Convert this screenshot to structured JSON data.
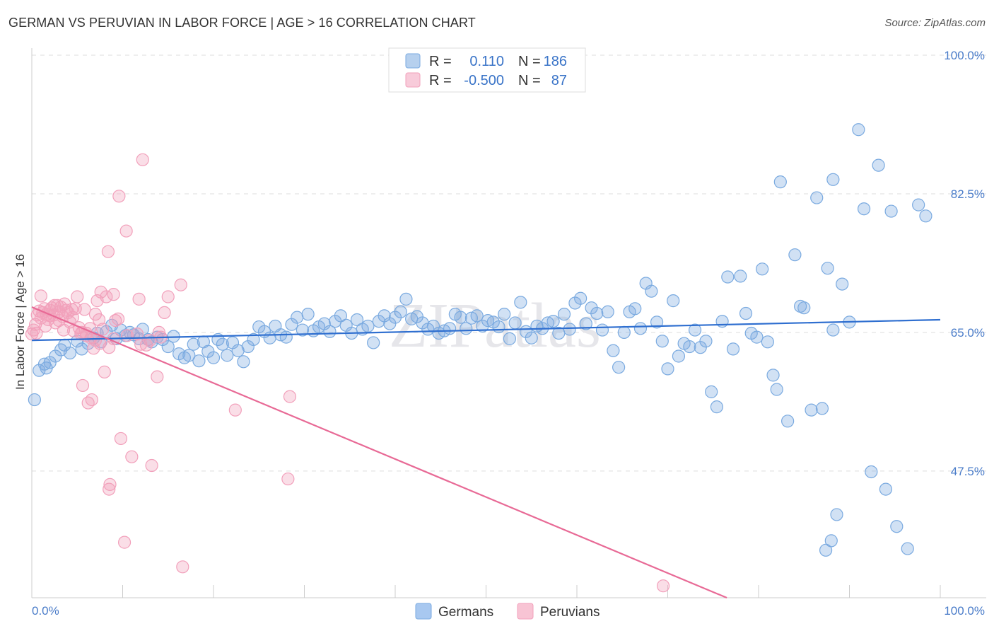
{
  "title": "GERMAN VS PERUVIAN IN LABOR FORCE | AGE > 16 CORRELATION CHART",
  "source": "Source: ZipAtlas.com",
  "watermark": "ZIPatlas",
  "chart_data": {
    "type": "scatter",
    "title": "GERMAN VS PERUVIAN IN LABOR FORCE | AGE > 16 CORRELATION CHART",
    "xlabel": "",
    "ylabel": "In Labor Force | Age > 16",
    "xlim": [
      0,
      100
    ],
    "ylim": [
      31.5,
      100
    ],
    "x_tick_labels": [
      "0.0%",
      "100.0%"
    ],
    "y_ticks": [
      47.5,
      65.0,
      82.5,
      100.0
    ],
    "y_tick_labels": [
      "47.5%",
      "65.0%",
      "82.5%",
      "100.0%"
    ],
    "grid": true,
    "legend_position": "top-center",
    "legend": {
      "rows": [
        {
          "r_label": "R =",
          "r_value": "0.110",
          "n_label": "N =",
          "n_value": "186"
        },
        {
          "r_label": "R =",
          "r_value": "-0.500",
          "n_label": "N =",
          "n_value": "87"
        }
      ]
    },
    "series": [
      {
        "name": "Germans",
        "color": "#7aaae0",
        "line_color": "#2f6fd0",
        "trend": {
          "x": [
            0,
            100
          ],
          "y": [
            64.0,
            66.6
          ]
        },
        "points": [
          [
            0.3,
            56.5
          ],
          [
            0.8,
            60.2
          ],
          [
            1.4,
            61.0
          ],
          [
            1.6,
            60.5
          ],
          [
            2.0,
            61.2
          ],
          [
            2.6,
            62.0
          ],
          [
            3.2,
            62.8
          ],
          [
            3.6,
            63.4
          ],
          [
            4.2,
            62.4
          ],
          [
            5.0,
            63.9
          ],
          [
            5.5,
            62.9
          ],
          [
            6.2,
            63.6
          ],
          [
            6.8,
            64.3
          ],
          [
            7.2,
            64.9
          ],
          [
            7.6,
            63.8
          ],
          [
            8.2,
            65.1
          ],
          [
            8.8,
            65.9
          ],
          [
            9.3,
            64.2
          ],
          [
            9.8,
            65.3
          ],
          [
            10.3,
            64.6
          ],
          [
            10.8,
            65.0
          ],
          [
            11.2,
            64.7
          ],
          [
            11.8,
            64.2
          ],
          [
            12.2,
            65.4
          ],
          [
            12.8,
            64.1
          ],
          [
            13.2,
            63.8
          ],
          [
            13.8,
            64.4
          ],
          [
            14.4,
            64.1
          ],
          [
            15.0,
            63.2
          ],
          [
            15.6,
            64.5
          ],
          [
            16.2,
            62.3
          ],
          [
            16.8,
            61.8
          ],
          [
            17.3,
            62.1
          ],
          [
            17.8,
            63.5
          ],
          [
            18.4,
            61.4
          ],
          [
            18.9,
            63.8
          ],
          [
            19.4,
            62.6
          ],
          [
            20.0,
            61.8
          ],
          [
            20.5,
            64.1
          ],
          [
            21.0,
            63.5
          ],
          [
            21.5,
            62.1
          ],
          [
            22.1,
            63.7
          ],
          [
            22.7,
            62.7
          ],
          [
            23.3,
            61.3
          ],
          [
            23.8,
            63.2
          ],
          [
            24.4,
            64.1
          ],
          [
            25.0,
            65.7
          ],
          [
            25.6,
            65.1
          ],
          [
            26.2,
            64.3
          ],
          [
            26.8,
            65.8
          ],
          [
            27.4,
            64.7
          ],
          [
            28.0,
            64.4
          ],
          [
            28.6,
            66.0
          ],
          [
            29.2,
            66.9
          ],
          [
            29.8,
            65.3
          ],
          [
            30.4,
            67.3
          ],
          [
            31.0,
            65.2
          ],
          [
            31.6,
            65.7
          ],
          [
            32.2,
            66.1
          ],
          [
            32.8,
            65.1
          ],
          [
            33.4,
            66.4
          ],
          [
            34.0,
            67.1
          ],
          [
            34.6,
            65.9
          ],
          [
            35.2,
            64.9
          ],
          [
            35.8,
            66.6
          ],
          [
            36.4,
            65.4
          ],
          [
            37.0,
            65.8
          ],
          [
            37.6,
            63.7
          ],
          [
            38.2,
            66.4
          ],
          [
            38.8,
            67.1
          ],
          [
            39.4,
            66.1
          ],
          [
            40.0,
            66.9
          ],
          [
            40.6,
            67.6
          ],
          [
            41.2,
            69.2
          ],
          [
            41.8,
            66.7
          ],
          [
            42.4,
            67.0
          ],
          [
            43.0,
            66.2
          ],
          [
            43.6,
            65.4
          ],
          [
            44.2,
            65.8
          ],
          [
            44.8,
            64.9
          ],
          [
            45.4,
            65.2
          ],
          [
            46.0,
            65.5
          ],
          [
            46.6,
            67.3
          ],
          [
            47.2,
            66.9
          ],
          [
            47.8,
            65.5
          ],
          [
            48.4,
            66.8
          ],
          [
            49.0,
            67.1
          ],
          [
            49.6,
            65.8
          ],
          [
            50.2,
            66.5
          ],
          [
            50.8,
            66.3
          ],
          [
            51.4,
            65.7
          ],
          [
            52.0,
            67.3
          ],
          [
            52.6,
            64.2
          ],
          [
            53.2,
            66.2
          ],
          [
            53.8,
            68.8
          ],
          [
            54.4,
            65.1
          ],
          [
            55.0,
            64.3
          ],
          [
            55.6,
            65.8
          ],
          [
            56.2,
            65.5
          ],
          [
            56.8,
            66.2
          ],
          [
            57.4,
            66.4
          ],
          [
            58.0,
            64.9
          ],
          [
            58.6,
            67.3
          ],
          [
            59.2,
            65.4
          ],
          [
            59.8,
            68.7
          ],
          [
            60.4,
            69.3
          ],
          [
            61.0,
            66.1
          ],
          [
            61.6,
            68.1
          ],
          [
            62.2,
            67.4
          ],
          [
            62.8,
            65.3
          ],
          [
            63.4,
            67.6
          ],
          [
            64.0,
            62.7
          ],
          [
            64.6,
            60.6
          ],
          [
            65.2,
            65.0
          ],
          [
            65.8,
            67.6
          ],
          [
            66.4,
            68.0
          ],
          [
            67.0,
            65.5
          ],
          [
            67.6,
            71.2
          ],
          [
            68.2,
            70.2
          ],
          [
            68.8,
            66.3
          ],
          [
            69.4,
            63.9
          ],
          [
            70.0,
            60.4
          ],
          [
            70.6,
            69.0
          ],
          [
            71.2,
            62.0
          ],
          [
            71.8,
            63.6
          ],
          [
            72.4,
            63.2
          ],
          [
            73.0,
            65.3
          ],
          [
            73.6,
            63.1
          ],
          [
            74.2,
            63.9
          ],
          [
            74.8,
            57.5
          ],
          [
            75.4,
            55.6
          ],
          [
            76.0,
            66.4
          ],
          [
            76.6,
            72.0
          ],
          [
            77.2,
            62.9
          ],
          [
            78.0,
            72.1
          ],
          [
            78.6,
            67.4
          ],
          [
            79.2,
            64.9
          ],
          [
            79.8,
            64.4
          ],
          [
            80.4,
            73.0
          ],
          [
            81.0,
            63.8
          ],
          [
            81.6,
            59.6
          ],
          [
            82.0,
            57.8
          ],
          [
            82.4,
            84.0
          ],
          [
            83.2,
            53.8
          ],
          [
            84.0,
            74.8
          ],
          [
            84.6,
            68.3
          ],
          [
            85.0,
            68.1
          ],
          [
            85.8,
            55.2
          ],
          [
            86.4,
            82.0
          ],
          [
            87.0,
            55.4
          ],
          [
            87.6,
            73.1
          ],
          [
            88.2,
            65.3
          ],
          [
            88.6,
            42.0
          ],
          [
            88.2,
            84.3
          ],
          [
            89.2,
            71.1
          ],
          [
            90.0,
            66.3
          ],
          [
            91.0,
            90.6
          ],
          [
            91.6,
            80.6
          ],
          [
            92.4,
            47.4
          ],
          [
            93.2,
            86.1
          ],
          [
            94.0,
            45.2
          ],
          [
            94.6,
            80.3
          ],
          [
            95.2,
            40.5
          ],
          [
            96.4,
            37.7
          ],
          [
            97.6,
            81.1
          ],
          [
            98.4,
            79.7
          ],
          [
            88.0,
            38.7
          ],
          [
            87.4,
            37.5
          ]
        ]
      },
      {
        "name": "Peruvians",
        "color": "#f2a0bb",
        "line_color": "#e86a96",
        "trend": {
          "x": [
            0,
            76.5
          ],
          "y": [
            68.2,
            31.5
          ]
        },
        "points": [
          [
            0.2,
            65.3
          ],
          [
            0.4,
            66.0
          ],
          [
            0.6,
            67.2
          ],
          [
            0.8,
            67.7
          ],
          [
            1.0,
            66.8
          ],
          [
            1.2,
            67.5
          ],
          [
            1.4,
            68.0
          ],
          [
            1.6,
            67.3
          ],
          [
            1.8,
            66.6
          ],
          [
            2.0,
            67.8
          ],
          [
            2.2,
            68.1
          ],
          [
            2.4,
            67.2
          ],
          [
            2.6,
            66.2
          ],
          [
            2.8,
            68.4
          ],
          [
            3.0,
            67.6
          ],
          [
            3.2,
            68.2
          ],
          [
            3.4,
            67.0
          ],
          [
            3.6,
            68.6
          ],
          [
            3.8,
            67.8
          ],
          [
            4.0,
            67.5
          ],
          [
            4.2,
            66.3
          ],
          [
            4.4,
            67.9
          ],
          [
            4.6,
            65.2
          ],
          [
            4.8,
            68.0
          ],
          [
            5.0,
            69.5
          ],
          [
            5.2,
            65.6
          ],
          [
            5.4,
            64.8
          ],
          [
            5.6,
            58.3
          ],
          [
            5.8,
            67.9
          ],
          [
            6.0,
            64.6
          ],
          [
            6.2,
            56.1
          ],
          [
            6.4,
            65.5
          ],
          [
            6.6,
            56.5
          ],
          [
            6.8,
            63.0
          ],
          [
            7.0,
            67.3
          ],
          [
            7.2,
            69.0
          ],
          [
            7.4,
            66.6
          ],
          [
            7.6,
            70.1
          ],
          [
            7.8,
            65.4
          ],
          [
            8.0,
            60.0
          ],
          [
            8.2,
            69.5
          ],
          [
            8.4,
            75.2
          ],
          [
            8.5,
            45.2
          ],
          [
            8.6,
            45.8
          ],
          [
            9.0,
            64.2
          ],
          [
            9.2,
            66.5
          ],
          [
            9.6,
            82.2
          ],
          [
            9.8,
            51.6
          ],
          [
            10.2,
            38.5
          ],
          [
            10.4,
            77.8
          ],
          [
            11.0,
            49.3
          ],
          [
            11.6,
            64.8
          ],
          [
            11.8,
            69.2
          ],
          [
            12.2,
            86.8
          ],
          [
            12.6,
            63.4
          ],
          [
            13.2,
            48.2
          ],
          [
            13.8,
            59.4
          ],
          [
            14.2,
            64.4
          ],
          [
            14.6,
            67.5
          ],
          [
            15.0,
            69.5
          ],
          [
            16.4,
            71.0
          ],
          [
            16.6,
            35.4
          ],
          [
            22.4,
            55.2
          ],
          [
            28.2,
            46.5
          ],
          [
            28.4,
            56.9
          ],
          [
            1.0,
            69.6
          ],
          [
            2.0,
            67.1
          ],
          [
            3.0,
            66.5
          ],
          [
            4.5,
            66.9
          ],
          [
            5.5,
            65.0
          ],
          [
            6.5,
            64.3
          ],
          [
            7.5,
            63.6
          ],
          [
            8.5,
            63.1
          ],
          [
            9.5,
            66.7
          ],
          [
            10.5,
            64.6
          ],
          [
            12.0,
            63.5
          ],
          [
            13.0,
            64.0
          ],
          [
            14.0,
            65.0
          ],
          [
            0.5,
            64.9
          ],
          [
            1.5,
            65.8
          ],
          [
            2.5,
            68.4
          ],
          [
            3.5,
            65.3
          ],
          [
            69.5,
            33.0
          ],
          [
            6.0,
            64.9
          ],
          [
            7.0,
            64.0
          ],
          [
            0.0,
            64.8
          ],
          [
            9.0,
            69.8
          ]
        ]
      }
    ]
  },
  "bottom_legend": [
    {
      "label": "Germans",
      "color": "#a8c8f0",
      "border": "#7aaae0"
    },
    {
      "label": "Peruvians",
      "color": "#f8c4d4",
      "border": "#f2a0bb"
    }
  ]
}
